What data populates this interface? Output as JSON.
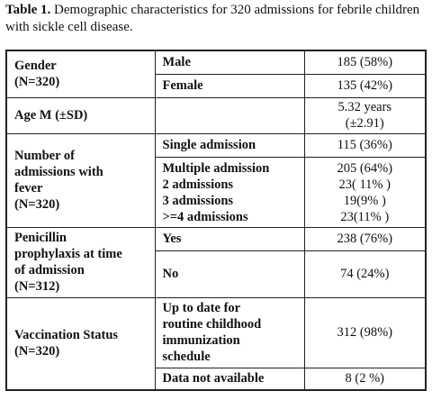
{
  "caption": {
    "label": "Table 1.",
    "text": " Demographic characteristics for 320 admissions for febrile children with sickle cell disease."
  },
  "gender": {
    "title": "Gender",
    "n": "(N=320)",
    "rows": [
      {
        "label": "Male",
        "value": "185 (58%)"
      },
      {
        "label": "Female",
        "value": "135 (42%)"
      }
    ]
  },
  "age": {
    "title": "Age M (±SD)",
    "label": "",
    "value_line1": "5.32 years",
    "value_line2": "(±2.91)"
  },
  "admissions": {
    "title_lines": [
      "Number of",
      "admissions with",
      "fever",
      "(N=320)"
    ],
    "single_label": "Single admission",
    "single_value": "115 (36%)",
    "multiple_labels": [
      "Multiple admission",
      "2 admissions",
      "3 admissions",
      ">=4 admissions"
    ],
    "multiple_values": [
      "205 (64%)",
      "23( 11% )",
      "19(9%  )",
      "23(11% )"
    ]
  },
  "penicillin": {
    "title_lines": [
      "Penicillin",
      "prophylaxis at time",
      "of admission",
      "(N=312)"
    ],
    "rows": [
      {
        "label": "Yes",
        "value": "238 (76%)"
      },
      {
        "label": "No",
        "value": "74 (24%)"
      }
    ]
  },
  "vaccination": {
    "title_lines": [
      "Vaccination Status",
      "(N=320)"
    ],
    "uptodate_lines": [
      "Up to date for",
      "routine childhood",
      "immunization",
      "schedule"
    ],
    "uptodate_value": "312 (98%)",
    "na_label": "Data not available",
    "na_value": "8 (2 %)"
  }
}
